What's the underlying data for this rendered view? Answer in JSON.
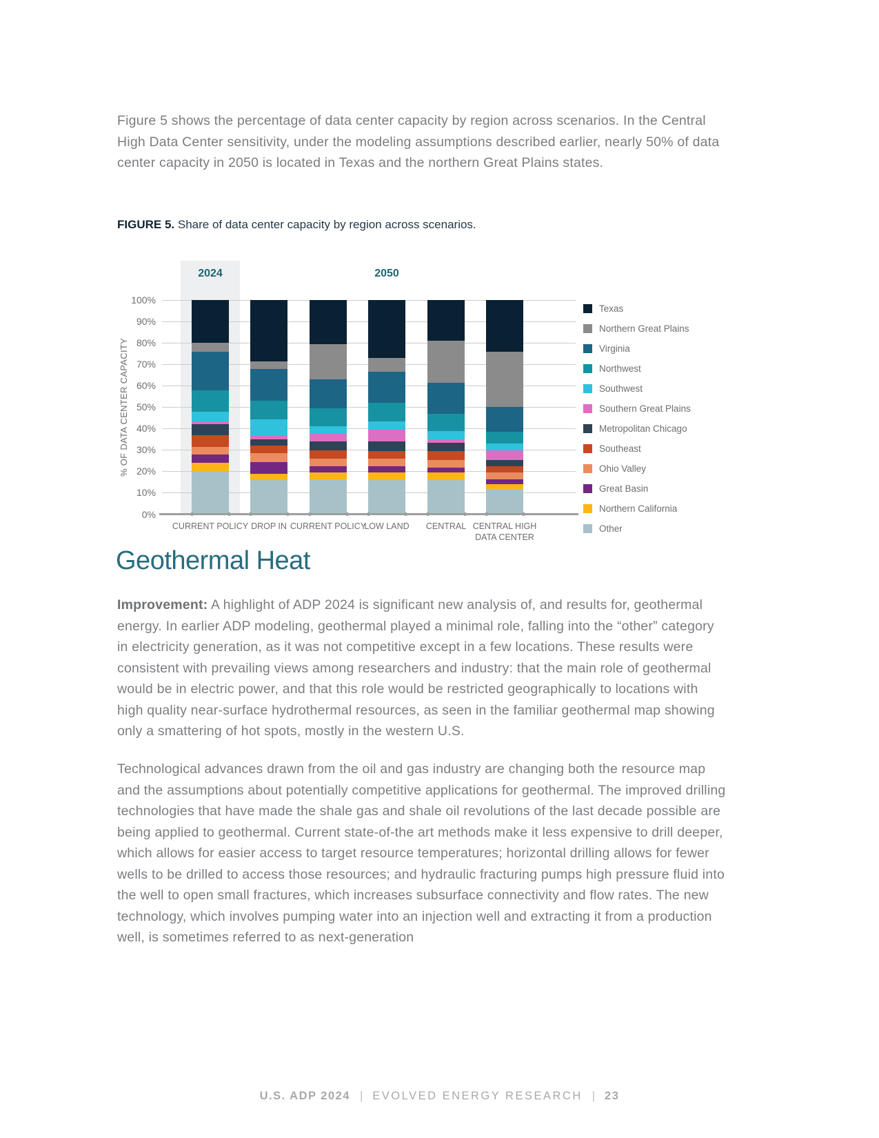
{
  "page": {
    "intro_paragraph": "Figure 5 shows the percentage of data center capacity by region across scenarios. In the Central High Data Center sensitivity, under the modeling assumptions described earlier, nearly 50% of data center capacity in 2050 is located in Texas and the northern Great Plains states.",
    "section_heading": "Geothermal Heat",
    "para1_lead": "Improvement:",
    "para1_rest": " A highlight of ADP 2024 is significant new analysis of, and results for, geothermal energy. In earlier ADP modeling, geothermal played a minimal role, falling into the “other” category in electricity generation, as it was not competitive except in a few locations. These results were consistent with prevailing views among researchers and industry: that the main role of geothermal would be in electric power, and that this role would be restricted geographically to locations with high quality near-surface hydrothermal resources, as seen in the familiar geothermal map showing only a smattering of hot spots, mostly in the western U.S.",
    "para2": "Technological advances drawn from the oil and gas industry are changing both the resource map and the assumptions about potentially competitive applications for geothermal. The improved drilling technologies that have made the shale gas and shale oil revolutions of the last decade possible are being applied to geothermal. Current state-of-the art methods make it less expensive to drill deeper, which allows for easier access to target resource temperatures; horizontal drilling allows for fewer wells to be drilled to access those resources; and hydraulic fracturing pumps high pressure fluid into the well to open small fractures, which increases subsurface connectivity and flow rates. The new technology, which involves pumping water into an injection well and extracting it from a production well, is sometimes referred to as next-generation"
  },
  "figure": {
    "label": "FIGURE 5.",
    "caption": "Share of data center capacity by region across scenarios."
  },
  "footer": {
    "left": "U.S. ADP 2024",
    "sep": "|",
    "middle": "EVOLVED ENERGY RESEARCH",
    "page_number": "23"
  },
  "chart_data": {
    "type": "bar",
    "stacked": true,
    "title": "Share of data center capacity by region across scenarios.",
    "ylabel": "% OF DATA CENTER CAPACITY",
    "ylim": [
      0,
      100
    ],
    "yticks": [
      "0%",
      "10%",
      "20%",
      "30%",
      "40%",
      "50%",
      "60%",
      "70%",
      "80%",
      "90%",
      "100%"
    ],
    "grid": true,
    "legend_position": "right",
    "groups": [
      {
        "label": "2024",
        "span": [
          0,
          0
        ],
        "highlight_band_color": "#edeff0"
      },
      {
        "label": "2050",
        "span": [
          1,
          5
        ]
      }
    ],
    "group_label_color": "#1e6476",
    "categories": [
      "CURRENT POLICY",
      "DROP IN",
      "CURRENT POLICY",
      "LOW LAND",
      "CENTRAL",
      "CENTRAL HIGH\nDATA CENTER"
    ],
    "series": [
      {
        "name": "Texas",
        "color": "#0a2033",
        "values": [
          20,
          28.5,
          20.5,
          27,
          19,
          24
        ]
      },
      {
        "name": "Northern Great Plains",
        "color": "#8b8b8b",
        "values": [
          4,
          3.5,
          16.5,
          6.5,
          19.5,
          26
        ]
      },
      {
        "name": "Virginia",
        "color": "#1d6585",
        "values": [
          18,
          15,
          13.5,
          14.5,
          14.5,
          11.5
        ]
      },
      {
        "name": "Northwest",
        "color": "#1792a2",
        "values": [
          10,
          8.5,
          8.5,
          8.5,
          8,
          5.5
        ]
      },
      {
        "name": "Southwest",
        "color": "#30c1dd",
        "values": [
          4.5,
          7.5,
          3.5,
          4,
          4,
          3
        ]
      },
      {
        "name": "Southern Great Plains",
        "color": "#dd6fc3",
        "values": [
          1.5,
          2,
          3.5,
          5.5,
          1.5,
          4.5
        ]
      },
      {
        "name": "Metropolitan Chicago",
        "color": "#2d4356",
        "values": [
          5,
          3,
          4,
          4.5,
          4,
          3
        ]
      },
      {
        "name": "Southeast",
        "color": "#c54a21",
        "values": [
          5.5,
          3.5,
          4,
          3.5,
          4,
          3
        ]
      },
      {
        "name": "Ohio Valley",
        "color": "#ea8c5d",
        "values": [
          3.5,
          4,
          3.5,
          3.5,
          3.5,
          3
        ]
      },
      {
        "name": "Great Basin",
        "color": "#722881",
        "values": [
          4,
          5.5,
          3,
          3,
          2.5,
          2.5
        ]
      },
      {
        "name": "Northern California",
        "color": "#fcb515",
        "values": [
          4,
          3,
          3,
          3.5,
          3.5,
          2
        ]
      },
      {
        "name": "Other",
        "color": "#a7c1c8",
        "values": [
          20,
          16,
          16.5,
          16,
          16,
          12
        ]
      }
    ]
  }
}
